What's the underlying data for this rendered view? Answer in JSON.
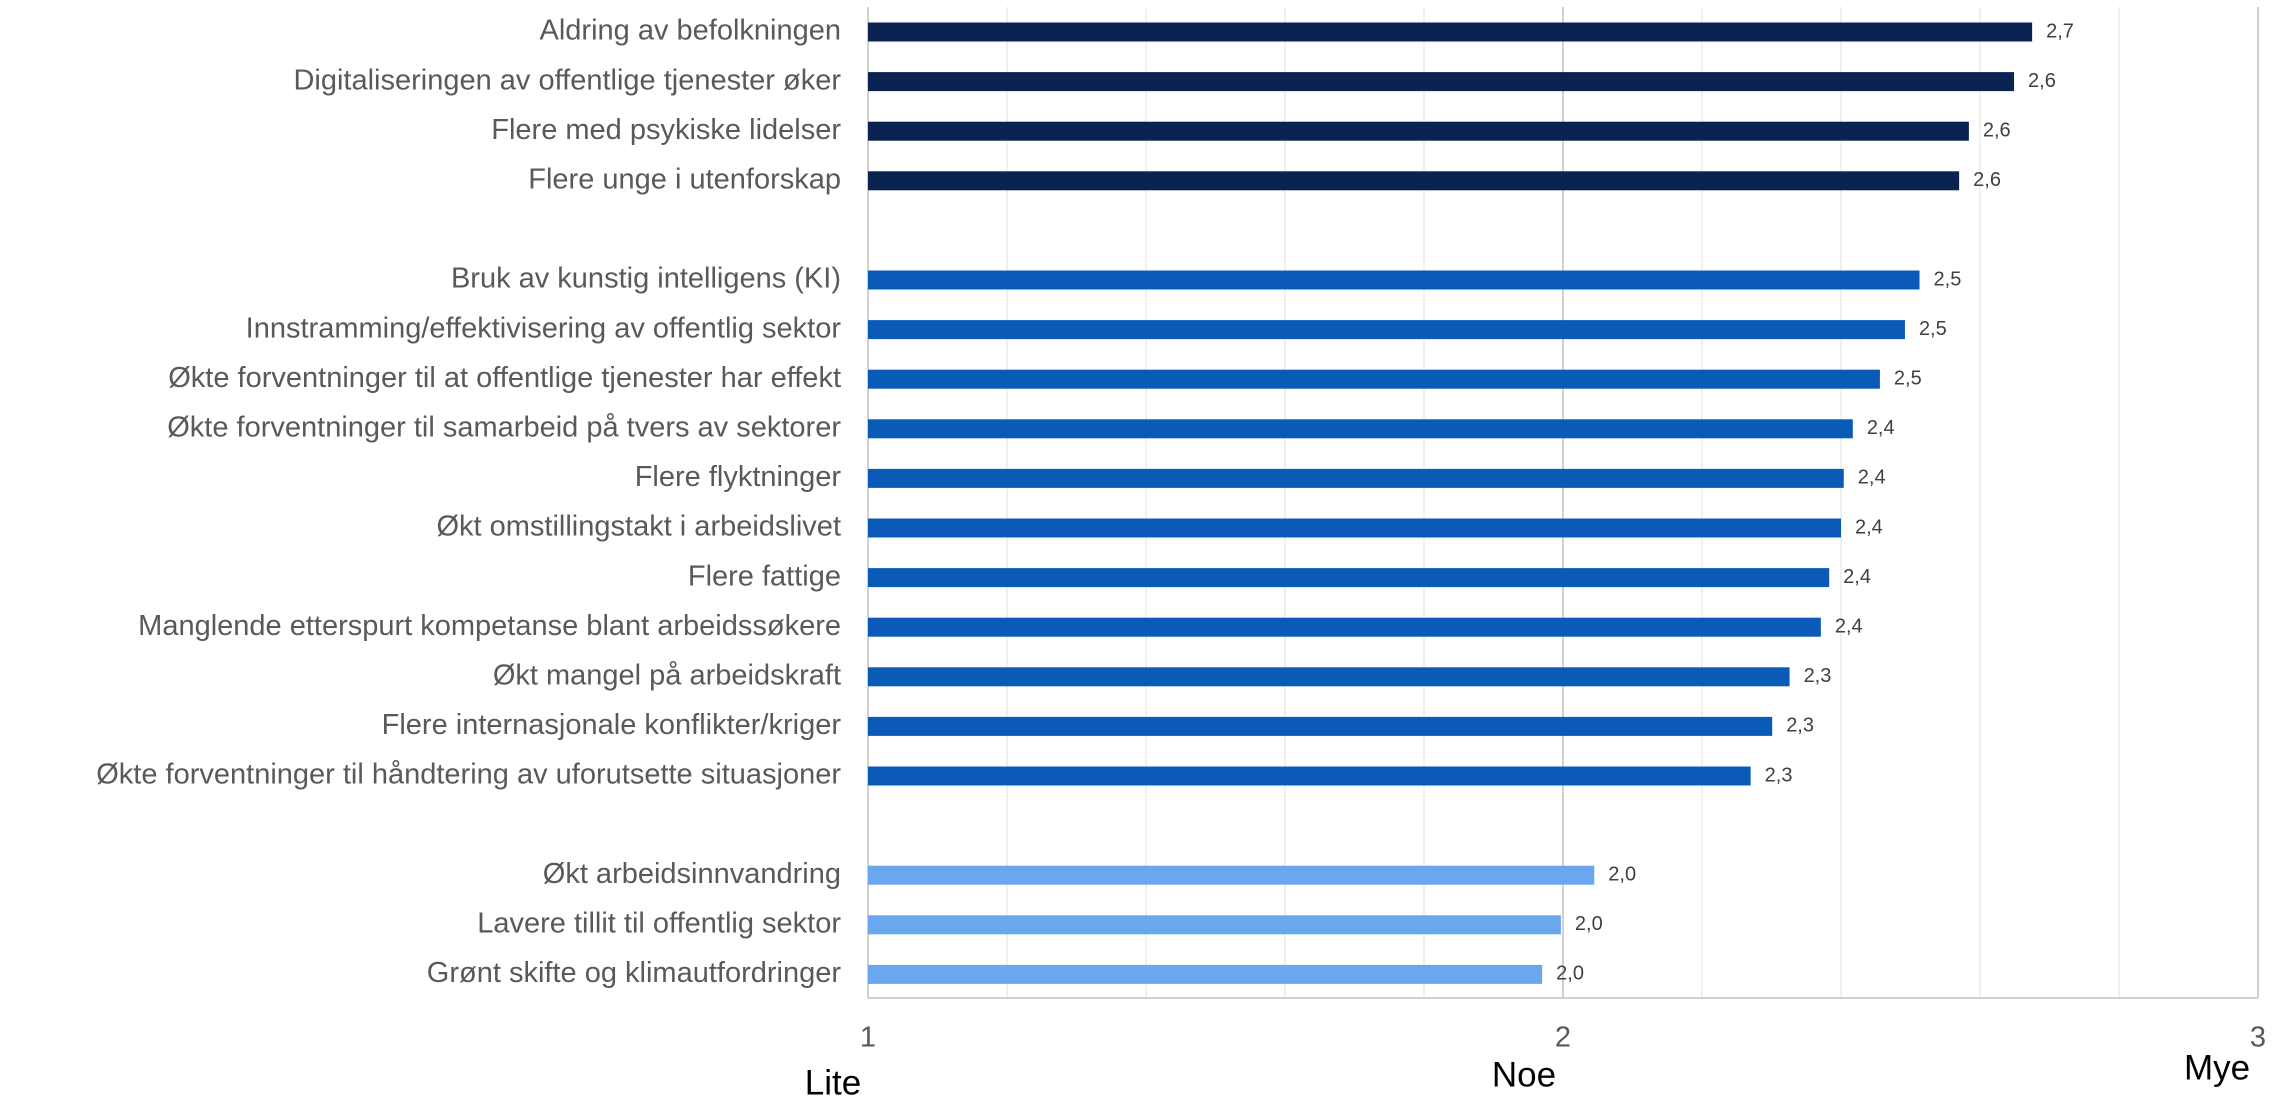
{
  "chart_data": {
    "type": "hbar",
    "categories": [
      "Aldring av befolkningen",
      "Digitaliseringen av offentlige tjenester øker",
      "Flere med psykiske lidelser",
      "Flere unge i utenforskap",
      null,
      "Bruk av kunstig intelligens (KI)",
      "Innstramming/effektivisering av offentlig sektor",
      "Økte forventninger til at offentlige tjenester har effekt",
      "Økte forventninger til samarbeid på tvers av sektorer",
      "Flere flyktninger",
      "Økt omstillingstakt i arbeidslivet",
      "Flere fattige",
      "Manglende etterspurt kompetanse blant arbeidssøkere",
      "Økt mangel på arbeidskraft",
      "Flere internasjonale konflikter/kriger",
      "Økte forventninger til håndtering av uforutsette situasjoner",
      null,
      "Økt arbeidsinnvandring",
      "Lavere tillit til offentlig sektor",
      "Grønt skifte og klimautfordringer"
    ],
    "values": [
      2.675,
      2.649,
      2.584,
      2.57,
      null,
      2.513,
      2.492,
      2.456,
      2.417,
      2.404,
      2.4,
      2.383,
      2.371,
      2.326,
      2.301,
      2.27,
      null,
      2.045,
      1.997,
      1.97
    ],
    "value_labels": [
      "2,7",
      "2,6",
      "2,6",
      "2,6",
      null,
      "2,5",
      "2,5",
      "2,5",
      "2,4",
      "2,4",
      "2,4",
      "2,4",
      "2,4",
      "2,3",
      "2,3",
      "2,3",
      null,
      "2,0",
      "2,0",
      "2,0"
    ],
    "colors": [
      "#0b2350",
      "#0b2350",
      "#0b2350",
      "#0b2350",
      null,
      "#0a5bb8",
      "#0a5bb8",
      "#0a5bb8",
      "#0a5bb8",
      "#0a5bb8",
      "#0a5bb8",
      "#0a5bb8",
      "#0a5bb8",
      "#0a5bb8",
      "#0a5bb8",
      "#0a5bb8",
      null,
      "#6aa7ef",
      "#6aa7ef",
      "#6aa7ef"
    ],
    "xlim": [
      1,
      3
    ],
    "xticks": [
      1,
      2,
      3
    ],
    "xminorticks": [
      1.2,
      1.4,
      1.6,
      1.8,
      2.2,
      2.4,
      2.6,
      2.8
    ],
    "annotations": [
      "Lite",
      "Noe",
      "Mye"
    ],
    "grid": true
  }
}
